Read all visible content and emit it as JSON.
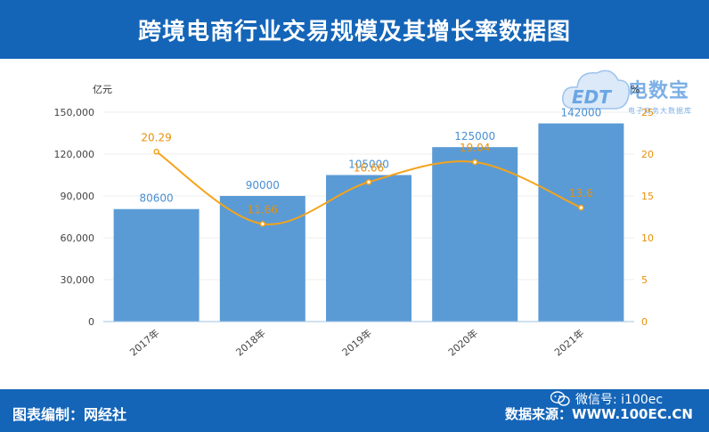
{
  "header": {
    "title": "跨境电商行业交易规模及其增长率数据图"
  },
  "footer": {
    "left": "图表编制：网经社",
    "right": "数据来源：WWW.100EC.CN",
    "wechat": "微信号: i100ec"
  },
  "logo": {
    "text": "电数宝",
    "sub": "电子商务大数据库",
    "mark": "EDT"
  },
  "colors": {
    "header_bg": "#1465b8",
    "bar": "#5b9bd5",
    "line": "#f5a31a"
  },
  "chart_data": {
    "type": "bar",
    "categories": [
      "2017年",
      "2018年",
      "2019年",
      "2020年",
      "2021年"
    ],
    "series": [
      {
        "values": [
          80600,
          90000,
          105000,
          125000,
          142000
        ],
        "axis": "left",
        "type": "bar"
      },
      {
        "values": [
          20.29,
          11.66,
          16.66,
          19.04,
          13.6
        ],
        "axis": "right",
        "type": "line",
        "smooth": true
      }
    ],
    "ylabel": "亿元",
    "y2label": "%",
    "ylim": [
      0,
      150000
    ],
    "y2lim": [
      0,
      25
    ],
    "yticks": [
      "0",
      "30,000",
      "60,000",
      "90,000",
      "120,000",
      "150,000"
    ],
    "y2ticks": [
      "0",
      "5",
      "10",
      "15",
      "20",
      "25"
    ],
    "grid": true
  }
}
